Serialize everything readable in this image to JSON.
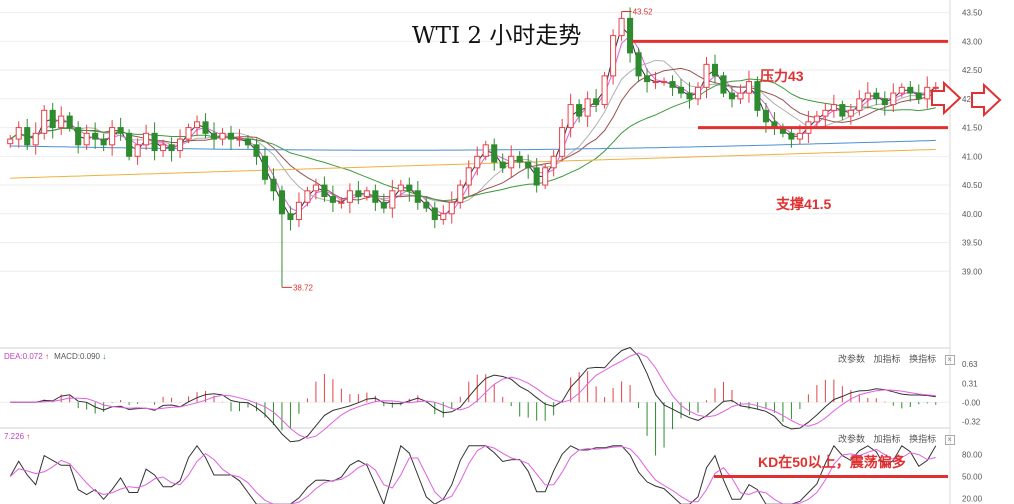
{
  "title": "WTI 2 小时走势",
  "annotations": {
    "resistance": "压力43",
    "support": "支撑41.5",
    "kd_note": "KD在50以上，震荡偏多"
  },
  "colors": {
    "up": "#e8404a",
    "down": "#2e8b2e",
    "annotation": "#e03030",
    "ma1": "#333333",
    "ma2": "#e060e0",
    "ma3": "#b0b0b0",
    "ma4": "#9a5050",
    "ma5": "#3c9a3c",
    "ma6": "#4a90d0",
    "ma7": "#f0b040"
  },
  "macd_panel": {
    "label_dea": "DEA:0.072",
    "label_macd": "MACD:0.090",
    "buttons": [
      "改参数",
      "加指标",
      "换指标"
    ]
  },
  "kd_panel": {
    "label": "7.226",
    "buttons": [
      "改参数",
      "加指标",
      "换指标"
    ]
  },
  "chart_data": [
    {
      "type": "candlestick",
      "title": "WTI 2 小时走势",
      "ylim": [
        37.7,
        43.65
      ],
      "y_ticks": [
        "43.50",
        "43.00",
        "42.50",
        "42.00",
        "41.50",
        "41.00",
        "40.50",
        "40.00",
        "39.50",
        "39.00"
      ],
      "high_label": "43.52",
      "low_label": "38.72",
      "close": [
        41.3,
        41.5,
        41.2,
        41.4,
        41.8,
        41.5,
        41.7,
        41.5,
        41.2,
        41.4,
        41.3,
        41.2,
        41.5,
        41.4,
        41.0,
        41.2,
        41.4,
        41.1,
        41.2,
        41.1,
        41.3,
        41.5,
        41.6,
        41.4,
        41.3,
        41.4,
        41.3,
        41.3,
        41.2,
        41.0,
        40.6,
        40.4,
        40.0,
        39.9,
        40.2,
        40.4,
        40.5,
        40.3,
        40.2,
        40.2,
        40.4,
        40.3,
        40.4,
        40.2,
        40.1,
        40.4,
        40.5,
        40.4,
        40.2,
        40.1,
        39.9,
        40.0,
        40.2,
        40.5,
        40.8,
        41.0,
        41.2,
        40.9,
        40.8,
        41.0,
        40.9,
        40.8,
        40.5,
        40.8,
        41.0,
        41.5,
        41.9,
        41.7,
        42.0,
        41.9,
        42.4,
        43.1,
        43.4,
        42.8,
        42.4,
        42.3,
        42.3,
        42.3,
        42.2,
        42.1,
        42.0,
        42.2,
        42.6,
        42.4,
        42.1,
        42.0,
        42.1,
        42.3,
        41.8,
        41.6,
        41.5,
        41.4,
        41.3,
        41.4,
        41.6,
        41.7,
        41.8,
        41.9,
        41.7,
        41.8,
        42.0,
        42.1,
        42.0,
        41.9,
        42.1,
        42.2,
        42.1,
        42.0,
        42.2,
        42.2
      ],
      "ma_periods": [
        5,
        10,
        20,
        30,
        60,
        120,
        250
      ],
      "support": 41.5,
      "resistance": 43.0
    },
    {
      "type": "bar",
      "title": "MACD",
      "y_ticks": [
        "0.63",
        "0.31",
        "-0.00",
        "-0.32"
      ],
      "dea": 0.072,
      "macd": 0.09
    },
    {
      "type": "line",
      "title": "KD",
      "y_ticks": [
        "80.00",
        "50.00",
        "20.00"
      ],
      "threshold": 50
    }
  ]
}
